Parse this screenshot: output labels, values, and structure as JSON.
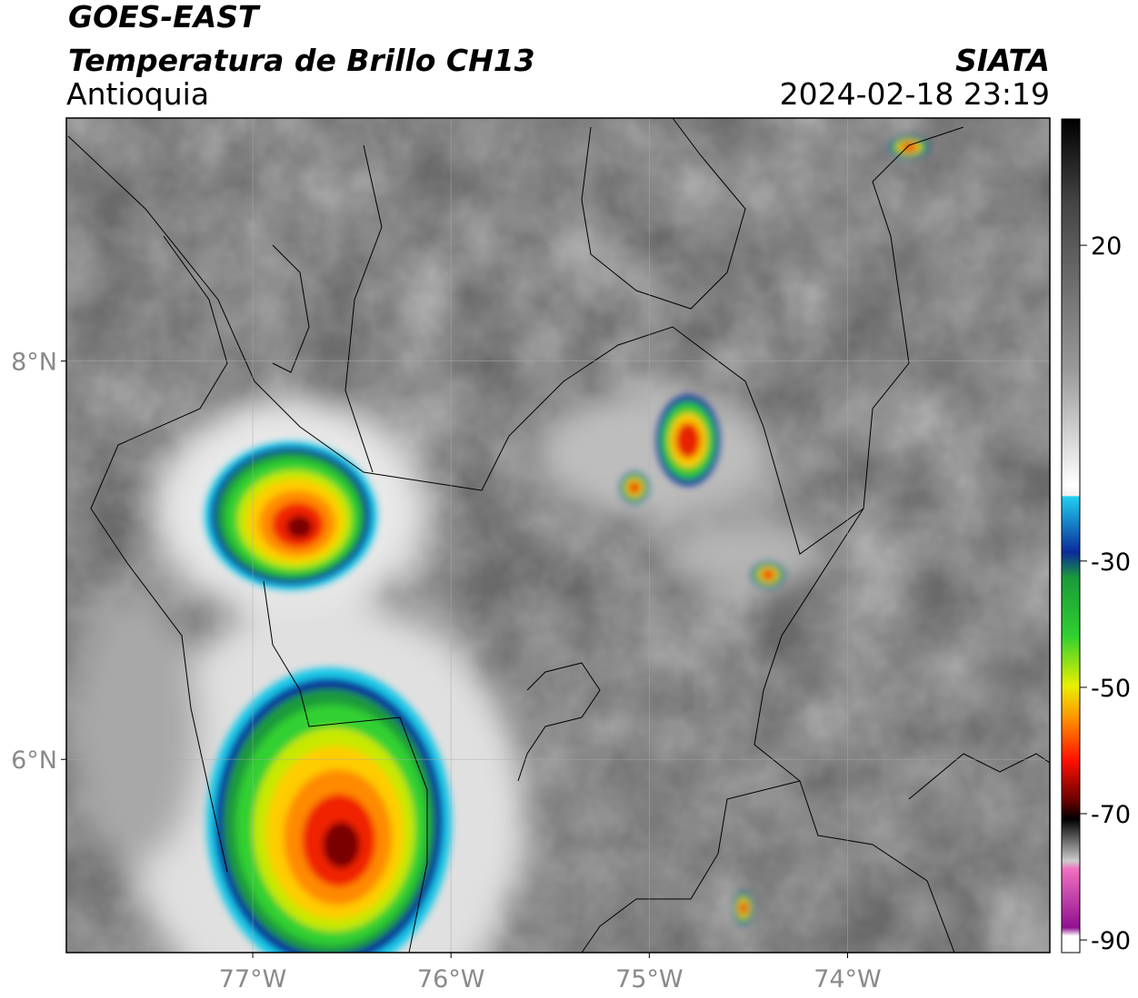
{
  "header": {
    "title": "GOES-EAST",
    "subtitle": "Temperatura de Brillo CH13",
    "region": "Antioquia",
    "source": "SIATA",
    "timestamp": "2024-02-18 23:19"
  },
  "map": {
    "xlim": [
      -77.94,
      -72.98
    ],
    "ylim": [
      5.03,
      9.22
    ],
    "xticks": [
      {
        "value": -77,
        "label": "77°W"
      },
      {
        "value": -76,
        "label": "76°W"
      },
      {
        "value": -75,
        "label": "75°W"
      },
      {
        "value": -74,
        "label": "74°W"
      }
    ],
    "yticks": [
      {
        "value": 8,
        "label": "8°N"
      },
      {
        "value": 6,
        "label": "6°N"
      }
    ],
    "grid": true
  },
  "colorbar": {
    "lim": [
      -92,
      40
    ],
    "ticks": [
      20,
      -30,
      -50,
      -70,
      -90
    ]
  }
}
